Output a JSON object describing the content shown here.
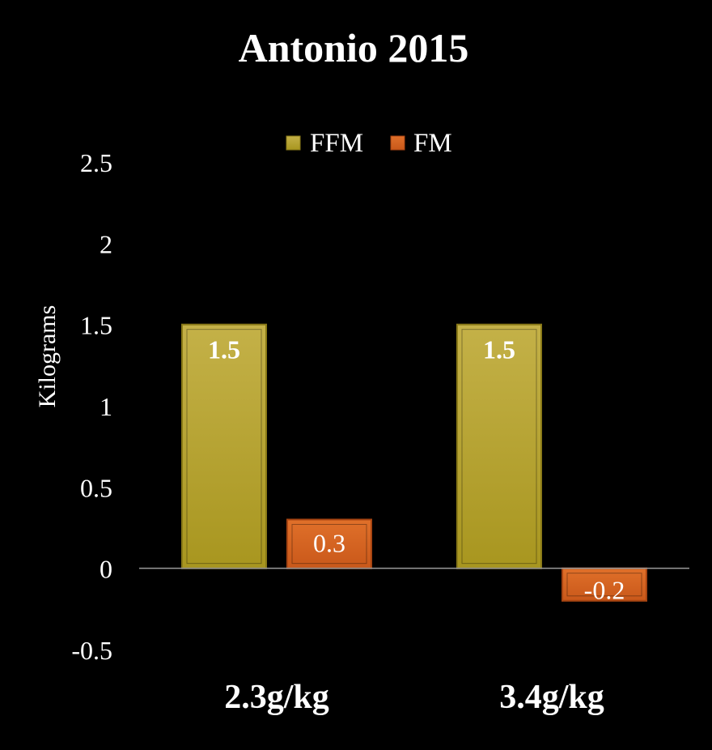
{
  "chart_data": {
    "type": "bar",
    "title": "Antonio 2015",
    "xlabel": "",
    "ylabel": "Kilograms",
    "categories": [
      "2.3g/kg",
      "3.4g/kg"
    ],
    "series": [
      {
        "name": "FFM",
        "values": [
          1.5,
          1.5
        ],
        "color": "#b5a22a",
        "data_labels": [
          "1.5",
          "1.5"
        ]
      },
      {
        "name": "FM",
        "values": [
          0.3,
          -0.2
        ],
        "color": "#d4621c",
        "data_labels": [
          "0.3",
          "-0.2"
        ]
      }
    ],
    "ylim": [
      -0.5,
      2.5
    ],
    "yticks": [
      -0.5,
      0,
      0.5,
      1,
      1.5,
      2,
      2.5
    ],
    "ytick_labels": [
      "-0.5",
      "0",
      "0.5",
      "1",
      "1.5",
      "2",
      "2.5"
    ],
    "legend_position": "top",
    "grid": false,
    "background": "#000000",
    "text_color": "#ffffff"
  }
}
